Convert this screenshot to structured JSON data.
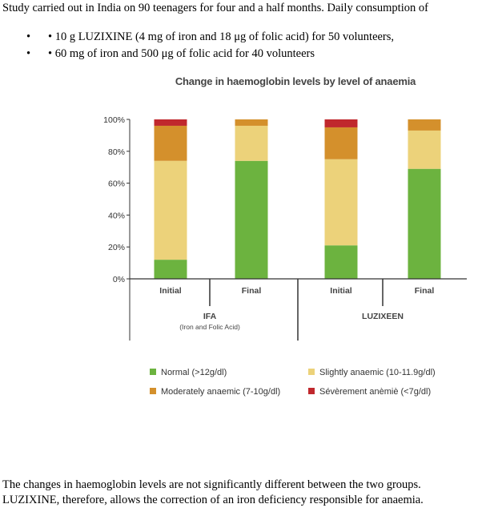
{
  "intro_text": "Study carried out in India on 90 teenagers for four and a half months. Daily consumption of",
  "bullets": [
    {
      "marker": "•",
      "text": "• 10 g LUZIXINE   (4 mg of iron and 18 μg of folic acid) for 50 volunteers,"
    },
    {
      "marker": "•",
      "text": "• 60 mg of iron and 500 μg of folic acid for 40 volunteers"
    }
  ],
  "chart_data": {
    "type": "bar",
    "stacked": true,
    "title": "Change in haemoglobin levels by level of anaemia",
    "categories": [
      "Initial",
      "Final",
      "Initial",
      "Final"
    ],
    "groups": [
      {
        "name": "IFA",
        "subtitle": "(Iron and Folic Acid)"
      },
      {
        "name": "LUZIXEEN",
        "subtitle": ""
      }
    ],
    "ylim": [
      0,
      100
    ],
    "yticks": [
      "0%",
      "20%",
      "40%",
      "60%",
      "80%",
      "100%"
    ],
    "series": [
      {
        "name": "Normal (>12g/dl)",
        "color": "#6cb33f",
        "values": [
          12,
          74,
          21,
          69
        ]
      },
      {
        "name": "Slightly anaemic (10-11.9g/dl)",
        "color": "#ecd27a",
        "values": [
          62,
          22,
          54,
          24
        ]
      },
      {
        "name": "Moderately anaemic (7-10g/dl)",
        "color": "#d4902c",
        "values": [
          22,
          4,
          20,
          7
        ]
      },
      {
        "name": "Sévèrement anèmiè (<7g/dl)",
        "color": "#c0282d",
        "values": [
          4,
          0,
          5,
          0
        ]
      }
    ]
  },
  "footer_lines": [
    "The changes in haemoglobin levels are not significantly different between the two groups.",
    "LUZIXINE, therefore, allows the correction of an iron deficiency responsible for anaemia."
  ]
}
